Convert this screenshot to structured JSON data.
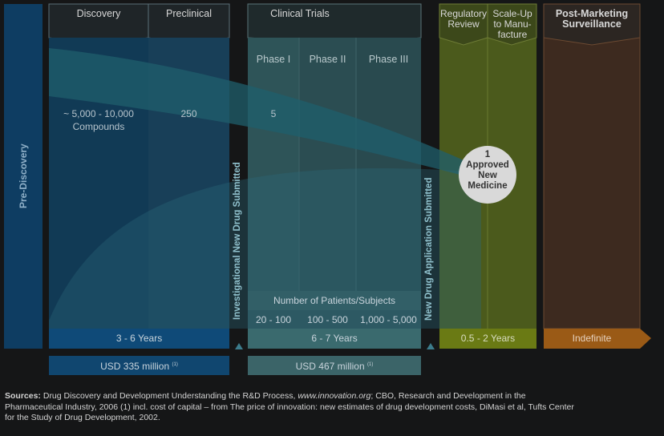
{
  "stages": {
    "pre_discovery": "Pre-Discovery",
    "discovery": "Discovery",
    "preclinical": "Preclinical",
    "clinical_trials": "Clinical Trials",
    "phase1": "Phase I",
    "phase2": "Phase II",
    "phase3": "Phase III",
    "regulatory_review": [
      "Regulatory",
      "Review"
    ],
    "scale_up": [
      "Scale-Up",
      "to Manu-",
      "facture"
    ],
    "post_marketing": [
      "Post-Marketing",
      "Surveillance"
    ]
  },
  "compounds": {
    "discovery": [
      "~ 5,000 - 10,000",
      "Compounds"
    ],
    "preclinical": "250",
    "phase1": "5",
    "approved": [
      "1",
      "Approved",
      "New",
      "Medicine"
    ]
  },
  "milestones": {
    "ind": "Investigational New Drug Submitted",
    "nda": "New Drug Application Submitted"
  },
  "patients": {
    "title": "Number of Patients/Subjects",
    "phase1": "20 - 100",
    "phase2": "100 - 500",
    "phase3": "1,000 - 5,000"
  },
  "durations": {
    "discovery_preclinical": "3 - 6 Years",
    "clinical": "6 - 7 Years",
    "review": "0.5 - 2 Years",
    "post": "Indefinite"
  },
  "costs": {
    "preclinical": "USD 335 million",
    "clinical": "USD 467 million",
    "footnote": "(1)"
  },
  "sources": {
    "label": "Sources:",
    "text1": " Drug Discovery and Development Understanding the R&D Process, ",
    "url": "www.innovation.org",
    "text2": "; CBO, Research and Development in the",
    "line2": "Pharmaceutical Industry, 2006 (1) incl. cost of capital – from The price of innovation: new estimates of drug development costs, DiMasi et al, Tufts Center",
    "line3": "for the Study of Drug Development, 2002."
  },
  "colors": {
    "dark_blue": "#0f3a5c",
    "teal": "#2e5a5f",
    "green": "#4c5a1e",
    "orange": "#6e3a16"
  }
}
